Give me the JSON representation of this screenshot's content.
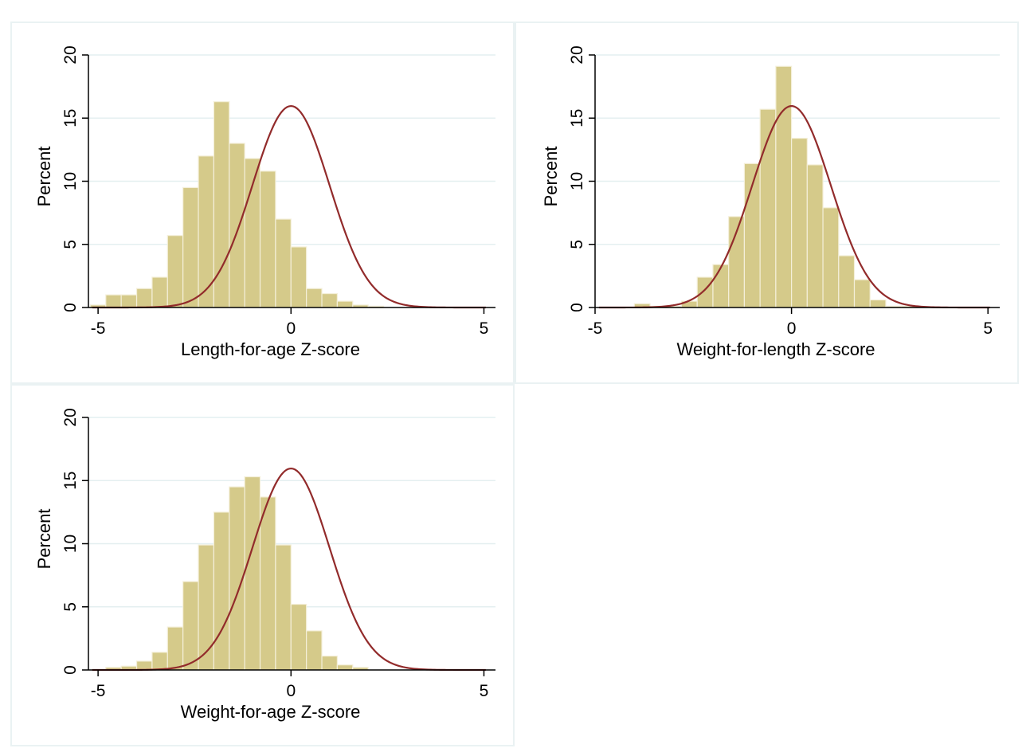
{
  "colors": {
    "bar_fill": "#d5ca8a",
    "bar_stroke": "#f4efd9",
    "curve": "#922b2b",
    "grid": "#e4eff0",
    "panel_border": "#eaf2f3"
  },
  "chart_data": [
    {
      "type": "bar",
      "subtype": "histogram-with-normal-density",
      "xlabel": "Length-for-age Z-score",
      "ylabel": "Percent",
      "xlim": [
        -5.25,
        5.3
      ],
      "ylim": [
        0,
        20
      ],
      "xticks": [
        "-5",
        "0",
        "5"
      ],
      "yticks": [
        "0",
        "5",
        "10",
        "15",
        "20"
      ],
      "grid": true,
      "bin_start": -5.2,
      "bin_width": 0.4,
      "values": [
        0.2,
        1.0,
        1.0,
        1.5,
        2.4,
        5.7,
        9.5,
        12.0,
        16.3,
        13.0,
        11.8,
        10.8,
        7.0,
        4.8,
        1.5,
        1.1,
        0.5,
        0.2,
        0.1
      ],
      "curve": {
        "mean": 0,
        "sd": 1,
        "scale_percent": 40
      }
    },
    {
      "type": "bar",
      "subtype": "histogram-with-normal-density",
      "xlabel": "Weight-for-length Z-score",
      "ylabel": "Percent",
      "xlim": [
        -5.0,
        5.3
      ],
      "ylim": [
        0,
        20
      ],
      "xticks": [
        "-5",
        "0",
        "5"
      ],
      "yticks": [
        "0",
        "5",
        "10",
        "15",
        "20"
      ],
      "grid": true,
      "bin_start": -4.0,
      "bin_width": 0.4,
      "values": [
        0.3,
        0.1,
        0.1,
        0.5,
        2.4,
        3.4,
        7.2,
        11.4,
        15.7,
        19.1,
        13.4,
        11.3,
        7.9,
        4.1,
        2.2,
        0.6,
        0.1,
        0.1
      ],
      "curve": {
        "mean": 0,
        "sd": 1,
        "scale_percent": 40
      }
    },
    {
      "type": "bar",
      "subtype": "histogram-with-normal-density",
      "xlabel": "Weight-for-age Z-score",
      "ylabel": "Percent",
      "xlim": [
        -5.25,
        5.3
      ],
      "ylim": [
        0,
        20
      ],
      "xticks": [
        "-5",
        "0",
        "5"
      ],
      "yticks": [
        "0",
        "5",
        "10",
        "15",
        "20"
      ],
      "grid": true,
      "bin_start": -4.8,
      "bin_width": 0.4,
      "values": [
        0.2,
        0.3,
        0.7,
        1.4,
        3.4,
        7.0,
        9.9,
        12.5,
        14.5,
        15.3,
        13.7,
        9.9,
        5.2,
        3.1,
        1.1,
        0.4,
        0.2
      ],
      "curve": {
        "mean": 0,
        "sd": 1,
        "scale_percent": 40
      }
    }
  ]
}
